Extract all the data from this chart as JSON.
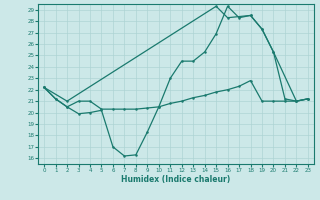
{
  "xlabel": "Humidex (Indice chaleur)",
  "xlim": [
    -0.5,
    23.5
  ],
  "ylim": [
    15.5,
    29.5
  ],
  "yticks": [
    16,
    17,
    18,
    19,
    20,
    21,
    22,
    23,
    24,
    25,
    26,
    27,
    28,
    29
  ],
  "xticks": [
    0,
    1,
    2,
    3,
    4,
    5,
    6,
    7,
    8,
    9,
    10,
    11,
    12,
    13,
    14,
    15,
    16,
    17,
    18,
    19,
    20,
    21,
    22,
    23
  ],
  "bg_color": "#cce8e8",
  "grid_color": "#aed4d4",
  "line_color": "#1a7a6e",
  "line1_x": [
    0,
    1,
    2,
    3,
    4,
    5,
    6,
    7,
    8,
    9,
    10,
    11,
    12,
    13,
    14,
    15,
    16,
    17,
    18,
    19,
    20,
    21,
    22,
    23
  ],
  "line1_y": [
    22.2,
    21.2,
    20.5,
    19.9,
    20.0,
    20.2,
    17.0,
    16.2,
    16.3,
    18.3,
    20.5,
    23.0,
    24.5,
    24.5,
    25.3,
    26.9,
    29.3,
    28.3,
    28.5,
    27.3,
    25.3,
    21.2,
    21.0,
    21.2
  ],
  "line2_x": [
    0,
    1,
    2,
    3,
    4,
    5,
    6,
    7,
    8,
    9,
    10,
    11,
    12,
    13,
    14,
    15,
    16,
    17,
    18,
    19,
    20,
    21,
    22,
    23
  ],
  "line2_y": [
    22.2,
    21.2,
    20.5,
    21.0,
    21.0,
    20.3,
    20.3,
    20.3,
    20.3,
    20.4,
    20.5,
    20.8,
    21.0,
    21.3,
    21.5,
    21.8,
    22.0,
    22.3,
    22.8,
    21.0,
    21.0,
    21.0,
    21.0,
    21.2
  ],
  "line3_x": [
    0,
    2,
    15,
    16,
    18,
    19,
    20,
    22,
    23
  ],
  "line3_y": [
    22.2,
    21.0,
    29.3,
    28.3,
    28.5,
    27.3,
    25.3,
    21.0,
    21.2
  ]
}
